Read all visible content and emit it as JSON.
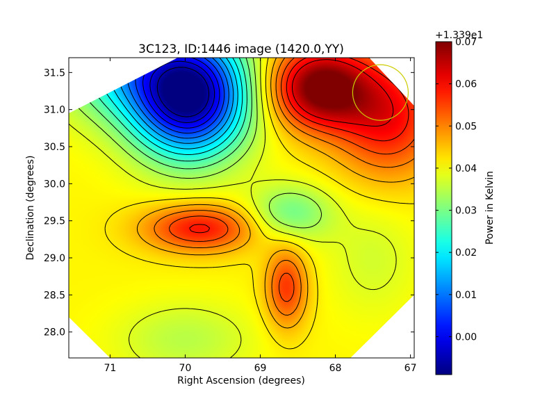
{
  "chart_data": {
    "type": "heatmap",
    "title": "3C123, ID:1446 image (1420.0,YY)",
    "xlabel": "Right Ascension (degrees)",
    "ylabel": "Declination (degrees)",
    "x_reversed": true,
    "xlim": [
      71.55,
      66.95
    ],
    "ylim": [
      27.65,
      31.7
    ],
    "x_ticks": [
      71,
      70,
      69,
      68,
      67
    ],
    "x_tick_labels": [
      "71",
      "70",
      "69",
      "68",
      "67"
    ],
    "y_ticks": [
      28.0,
      28.5,
      29.0,
      29.5,
      30.0,
      30.5,
      31.0,
      31.5
    ],
    "y_tick_labels": [
      "28.0",
      "28.5",
      "29.0",
      "29.5",
      "30.0",
      "30.5",
      "31.0",
      "31.5"
    ],
    "colorbar": {
      "label": "Power in Kelvin",
      "offset_label": "+1.339e1",
      "colormap": "jet",
      "vmin": -0.009,
      "vmax": 0.07,
      "ticks": [
        0.0,
        0.01,
        0.02,
        0.03,
        0.04,
        0.05,
        0.06,
        0.07
      ],
      "tick_labels": [
        "0.00",
        "0.01",
        "0.02",
        "0.03",
        "0.04",
        "0.05",
        "0.06",
        "0.07"
      ]
    },
    "features": [
      {
        "kind": "minimum",
        "ra": 69.95,
        "dec": 31.05,
        "value": -0.009
      },
      {
        "kind": "maximum",
        "ra": 68.3,
        "dec": 31.2,
        "value": 0.07
      },
      {
        "kind": "local-max",
        "ra": 69.85,
        "dec": 29.45,
        "value": 0.058
      },
      {
        "kind": "local-max",
        "ra": 68.65,
        "dec": 28.55,
        "value": 0.055
      },
      {
        "kind": "local-min",
        "ra": 68.55,
        "dec": 29.55,
        "value": 0.028
      },
      {
        "kind": "local-min",
        "ra": 70.0,
        "dec": 27.95,
        "value": 0.035
      }
    ],
    "beam_marker": {
      "ra": 67.4,
      "dec": 31.23,
      "radius_deg": 0.37,
      "color": "#cccc00"
    },
    "contours": "black",
    "grid": false
  }
}
